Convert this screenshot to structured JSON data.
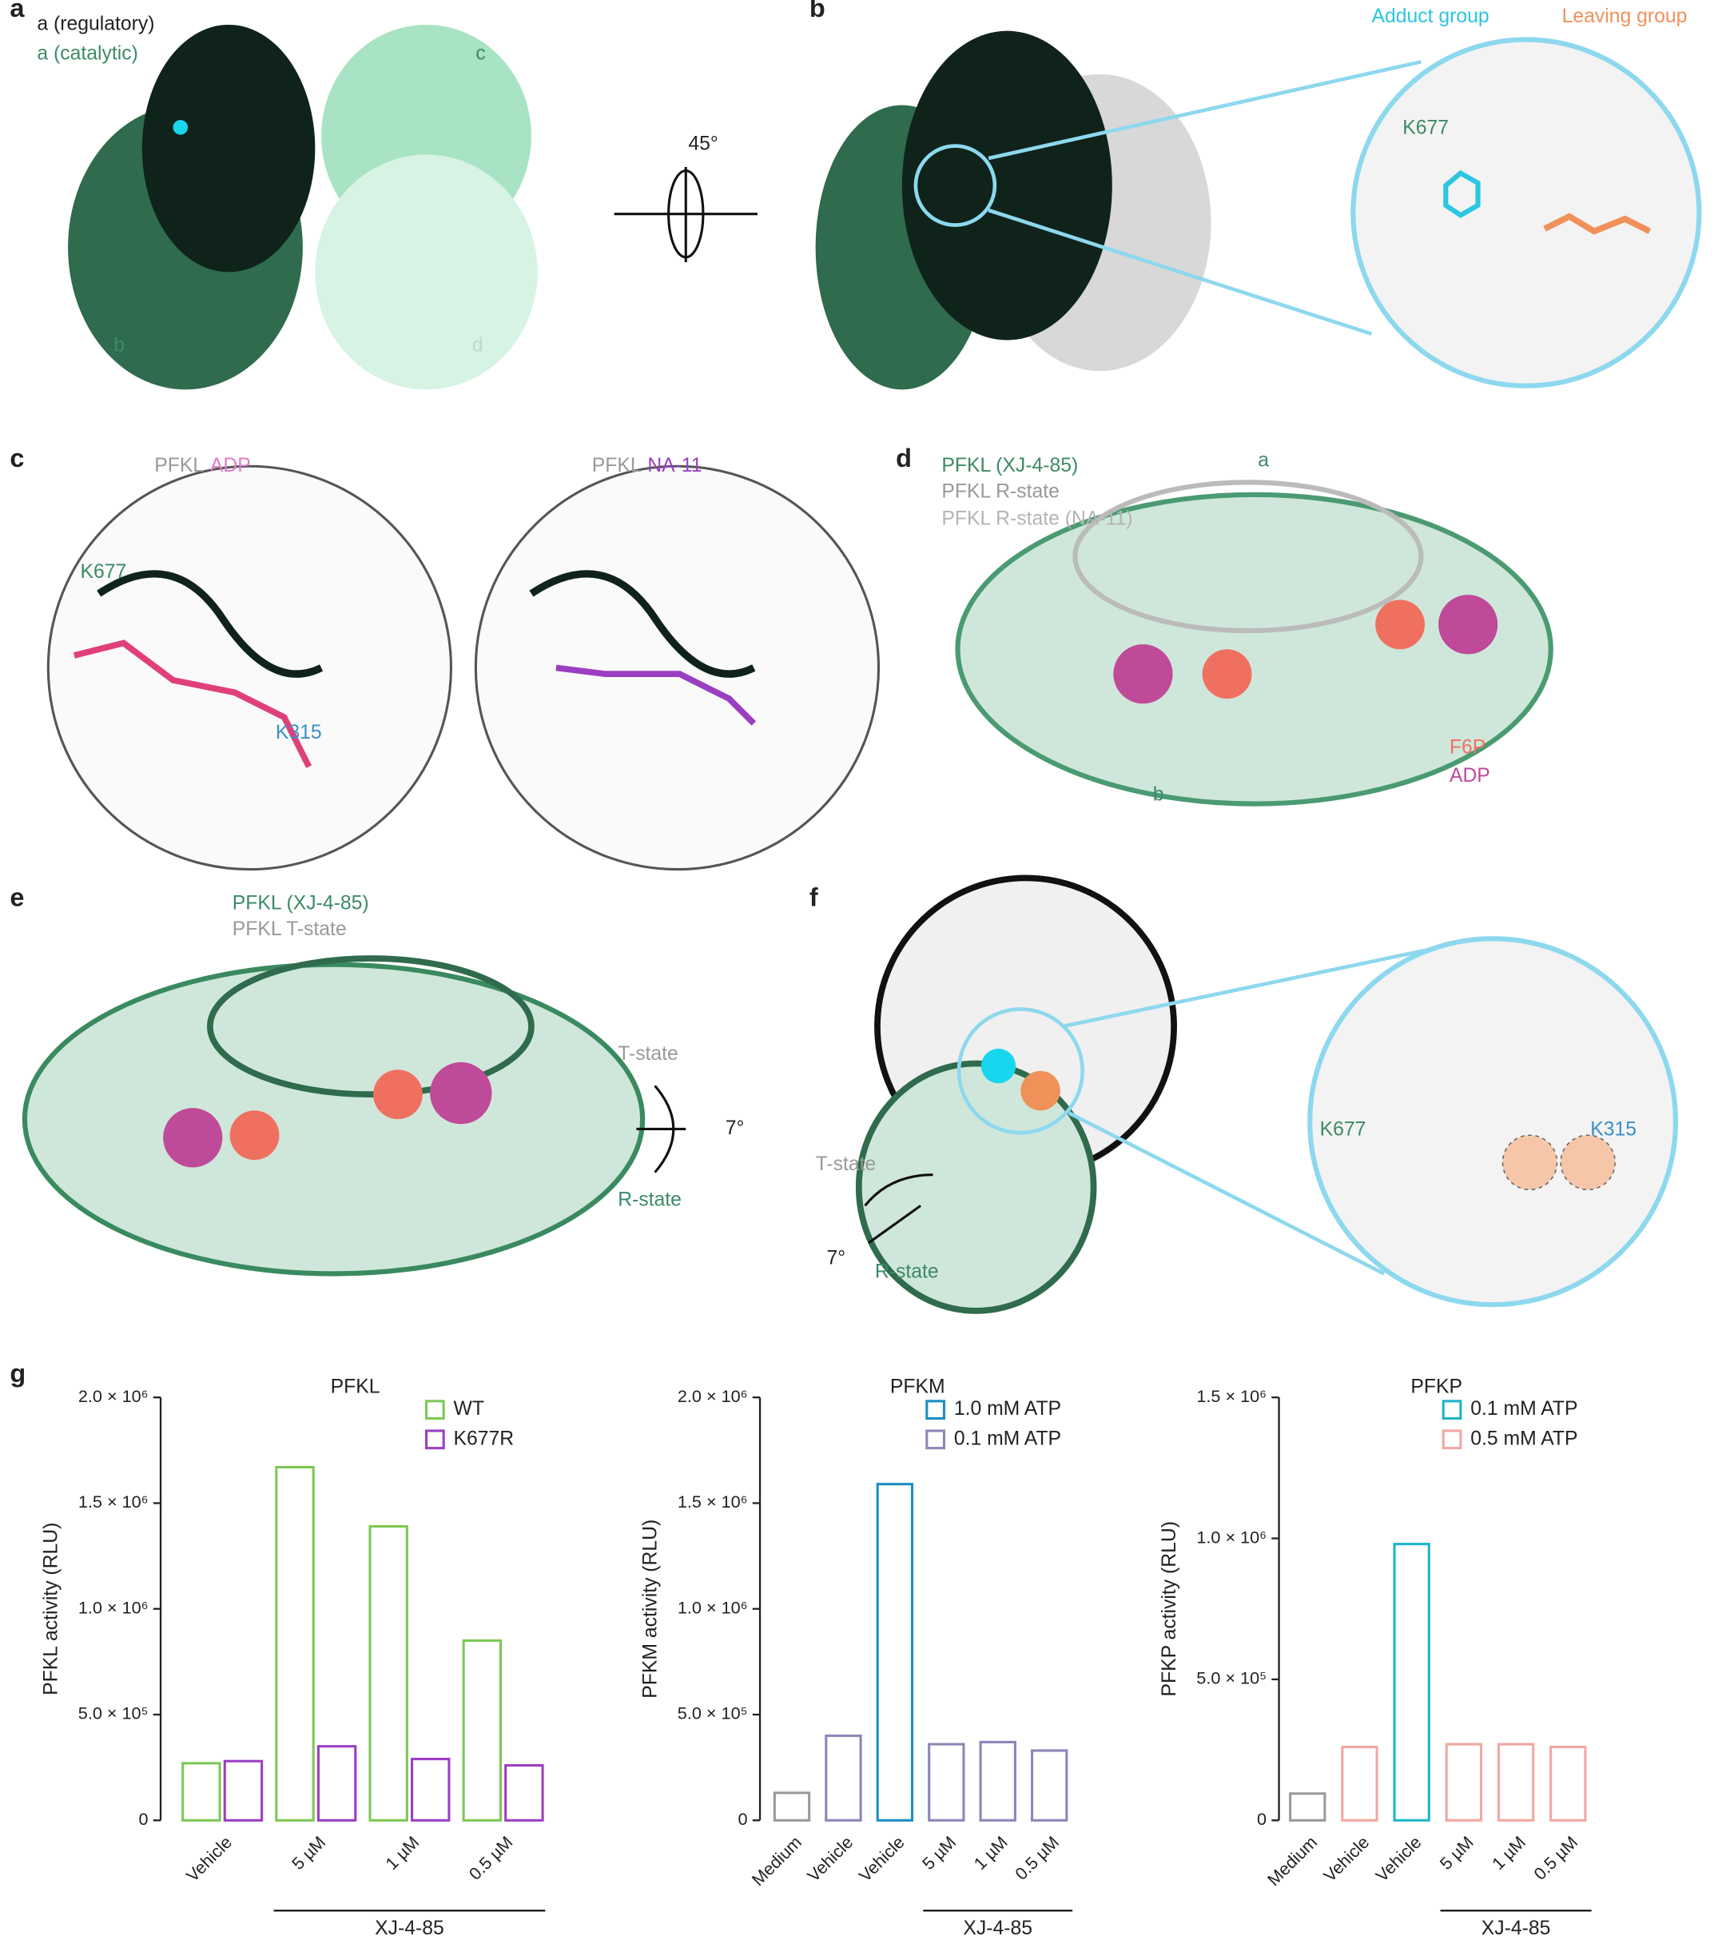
{
  "figure": {
    "panel_a": {
      "letter": "a",
      "regulatory": "a (regulatory)",
      "catalytic": "a (catalytic)",
      "c": "c",
      "b": "b",
      "d": "d",
      "rotation": "45°"
    },
    "panel_b": {
      "letter": "b",
      "adduct": "Adduct group",
      "leaving": "Leaving group",
      "residue": "K677"
    },
    "panel_c": {
      "letter": "c",
      "left_protein": "PFKL",
      "left_ligand": "ADP",
      "k677": "K677",
      "k315": "K315",
      "right_protein": "PFKL",
      "right_ligand": "NA-11"
    },
    "panel_d": {
      "letter": "d",
      "legend_1": "PFKL (XJ-4-85)",
      "legend_2": "PFKL R-state",
      "legend_3": "PFKL R-state (NA-11)",
      "a": "a",
      "b": "b",
      "f6p": "F6P",
      "adp": "ADP"
    },
    "panel_e": {
      "letter": "e",
      "legend_1": "PFKL (XJ-4-85)",
      "legend_2": "PFKL T-state",
      "t_state": "T-state",
      "angle": "7°",
      "r_state": "R-state"
    },
    "panel_f": {
      "letter": "f",
      "t_state": "T-state",
      "angle": "7°",
      "r_state": "R-state",
      "k677": "K677",
      "k315": "K315"
    },
    "panel_g": {
      "letter": "g"
    }
  },
  "chart_data": [
    {
      "type": "bar",
      "title": "PFKL",
      "y_label": "PFKL activity (RLU)",
      "bracket_label": "XJ-4-85",
      "legend": "upper right",
      "categories": [
        "Vehicle",
        "5 µM",
        "1 µM",
        "0.5 µM"
      ],
      "series": [
        {
          "name": "WT",
          "color": "#7dc855",
          "values": [
            270000,
            1670000,
            1390000,
            850000
          ]
        },
        {
          "name": "K677R",
          "color": "#9b3fc1",
          "values": [
            280000,
            350000,
            290000,
            260000
          ]
        }
      ],
      "ylim": [
        0,
        2000000
      ],
      "yticks": [
        0,
        {
          "value": 500000,
          "label": "5.0 × 10⁵"
        },
        {
          "value": 1000000,
          "label": "1.0 × 10⁶"
        },
        {
          "value": 1500000,
          "label": "1.5 × 10⁶"
        },
        {
          "value": 2000000,
          "label": "2.0 × 10⁶"
        }
      ]
    },
    {
      "type": "bar",
      "title": "PFKM",
      "y_label": "PFKM activity (RLU)",
      "bracket_label": "XJ-4-85",
      "legend": "upper right",
      "categories": [
        "Medium",
        "Vehicle",
        "Vehicle",
        "5 µM",
        "1 µM",
        "0.5 µM"
      ],
      "series": [
        {
          "color": "#9a9a9a",
          "values": [
            130000,
            null,
            null,
            null,
            null,
            null
          ]
        },
        {
          "name": "1.0 mM ATP",
          "color": "#1a8fc0",
          "values": [
            null,
            null,
            1590000,
            null,
            null,
            null
          ]
        },
        {
          "name": "0.1 mM ATP",
          "color": "#8c86b8",
          "values": [
            null,
            400000,
            null,
            360000,
            370000,
            330000
          ]
        }
      ],
      "ylim": [
        0,
        2000000
      ],
      "yticks": [
        0,
        {
          "value": 500000,
          "label": "5.0 × 10⁵"
        },
        {
          "value": 1000000,
          "label": "1.0 × 10⁶"
        },
        {
          "value": 1500000,
          "label": "1.5 × 10⁶"
        },
        {
          "value": 2000000,
          "label": "2.0 × 10⁶"
        }
      ]
    },
    {
      "type": "bar",
      "title": "PFKP",
      "y_label": "PFKP activity (RLU)",
      "bracket_label": "XJ-4-85",
      "legend": "upper right",
      "categories": [
        "Medium",
        "Vehicle",
        "Vehicle",
        "5 µM",
        "1 µM",
        "0.5 µM"
      ],
      "series": [
        {
          "color": "#9a9a9a",
          "values": [
            95000,
            null,
            null,
            null,
            null,
            null
          ]
        },
        {
          "name": "0.1 mM ATP",
          "color": "#1fb5c8",
          "values": [
            null,
            null,
            980000,
            null,
            null,
            null
          ]
        },
        {
          "name": "0.5 mM ATP",
          "color": "#f0a8a0",
          "values": [
            null,
            260000,
            null,
            270000,
            270000,
            260000
          ]
        }
      ],
      "ylim": [
        0,
        1500000
      ],
      "yticks": [
        0,
        {
          "value": 500000,
          "label": "5.0 × 10⁵"
        },
        {
          "value": 1000000,
          "label": "1.0 × 10⁶"
        },
        {
          "value": 1500000,
          "label": "1.5 × 10⁶"
        }
      ]
    }
  ]
}
